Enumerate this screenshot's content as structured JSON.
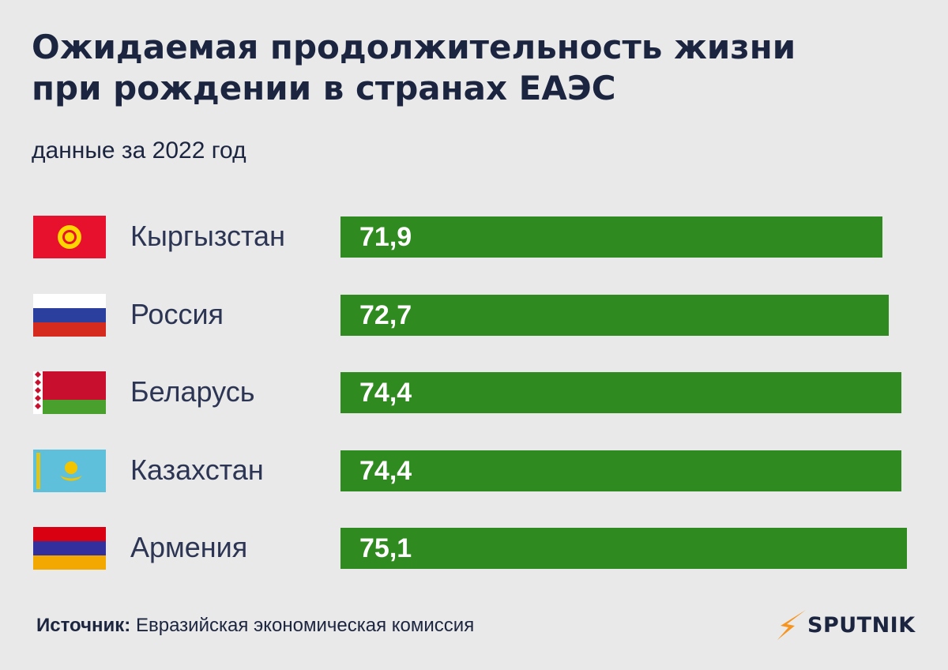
{
  "header": {
    "title_line1": "Ожидаемая продолжительность жизни",
    "title_line2": "при рождении в странах ЕАЭС",
    "subtitle": "данные за 2022 год"
  },
  "footer": {
    "source_label": "Источник:",
    "source_text": "Евразийская экономическая комиссия",
    "brand": "SPUTNIK"
  },
  "colors": {
    "bar": "#2f8a1f",
    "background": "#e9e9e9",
    "text": "#1c2540",
    "brand_accent": "#f7941d"
  },
  "chart_data": {
    "type": "bar",
    "orientation": "horizontal",
    "categories": [
      "Кыргызстан",
      "Россия",
      "Беларусь",
      "Казахстан",
      "Армения"
    ],
    "values": [
      71.9,
      72.7,
      74.4,
      74.4,
      75.1
    ],
    "value_labels": [
      "71,9",
      "72,7",
      "74,4",
      "74,4",
      "75,1"
    ],
    "flags": [
      "kyrgyzstan-flag-icon",
      "russia-flag-icon",
      "belarus-flag-icon",
      "kazakhstan-flag-icon",
      "armenia-flag-icon"
    ],
    "title": "Ожидаемая продолжительность жизни при рождении в странах ЕАЭС",
    "subtitle": "данные за 2022 год",
    "xlabel": "",
    "ylabel": "",
    "grid": false,
    "legend": "none"
  }
}
